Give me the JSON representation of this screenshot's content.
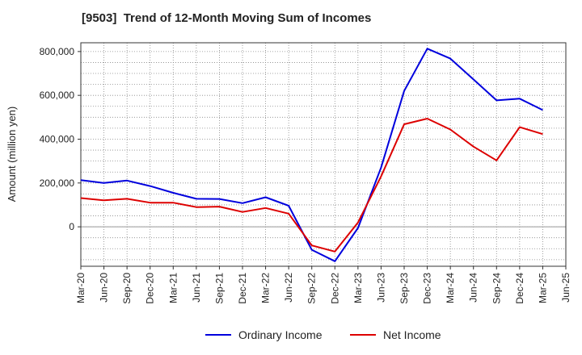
{
  "chart_data": {
    "type": "line",
    "title": "[9503]  Trend of 12-Month Moving Sum of Incomes",
    "xlabel": "",
    "ylabel": "Amount (million yen)",
    "ylim": [
      -180000,
      840000
    ],
    "yticks": [
      0,
      200000,
      400000,
      600000,
      800000
    ],
    "ytick_labels": [
      "0",
      "200,000",
      "400,000",
      "600,000",
      "800,000"
    ],
    "x": [
      "Mar-20",
      "Jun-20",
      "Sep-20",
      "Dec-20",
      "Mar-21",
      "Jun-21",
      "Sep-21",
      "Dec-21",
      "Mar-22",
      "Jun-22",
      "Sep-22",
      "Dec-22",
      "Mar-23",
      "Jun-23",
      "Sep-23",
      "Dec-23",
      "Mar-24",
      "Jun-24",
      "Sep-24",
      "Dec-24",
      "Mar-25",
      "Jun-25"
    ],
    "series": [
      {
        "name": "Ordinary Income",
        "color": "#0000dd",
        "values": [
          213000,
          200000,
          211000,
          186000,
          155000,
          128000,
          127000,
          108000,
          135000,
          96000,
          -105000,
          -157000,
          -5000,
          270000,
          620000,
          813000,
          768000,
          673000,
          577000,
          585000,
          533000,
          null
        ]
      },
      {
        "name": "Net Income",
        "color": "#dd0000",
        "values": [
          131000,
          121000,
          128000,
          110000,
          110000,
          90000,
          92000,
          68000,
          86000,
          60000,
          -85000,
          -113000,
          20000,
          230000,
          468000,
          494000,
          444000,
          366000,
          303000,
          455000,
          423000,
          null
        ]
      }
    ],
    "grid": true,
    "legend": "bottom-center"
  }
}
